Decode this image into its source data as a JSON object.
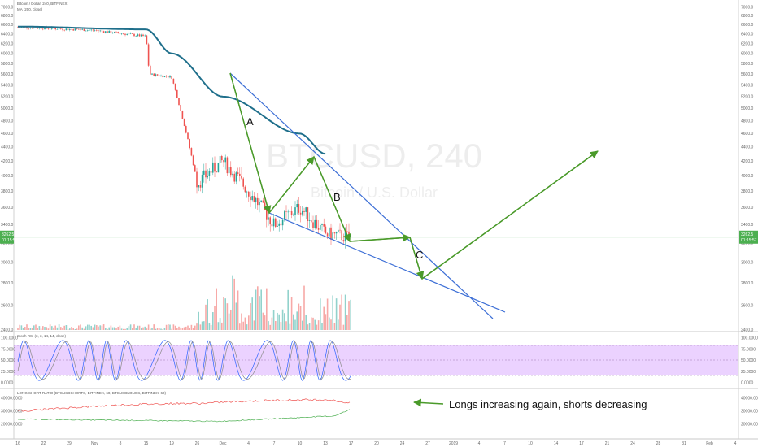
{
  "header": {
    "symbol_line": "Bitcoin / Dollar, 240, BITFINEX",
    "ma_line": "MA (200, close)"
  },
  "watermark": {
    "ticker": "BTCUSD, 240",
    "description": "Bitcoin / U.S. Dollar"
  },
  "price_axis": {
    "ticks": [
      "7000.0",
      "6800.0",
      "6600.0",
      "6400.0",
      "6200.0",
      "6000.0",
      "5800.0",
      "5600.0",
      "5400.0",
      "5200.0",
      "5000.0",
      "4800.0",
      "4600.0",
      "4400.0",
      "4200.0",
      "4000.0",
      "3800.0",
      "3600.0",
      "3400.0",
      "3200.0",
      "3000.0",
      "2800.0",
      "2600.0",
      "2400.0"
    ],
    "current_price": "3262.5",
    "countdown": "01:15:57"
  },
  "wave_labels": {
    "a": "A",
    "b": "B",
    "c": "C"
  },
  "indicators": {
    "stoch_rsi": {
      "label": "Stoch RSI (3, 3, 14, 14, close)",
      "ticks": [
        "100.0000",
        "75.0000",
        "50.0000",
        "25.0000",
        "0.0000"
      ]
    },
    "long_short": {
      "label": "LONG SHORT RATIO (BTCUSDSHORTS, BITFINEX, 60, BTCUSDLONGS, BITFINEX, 60)",
      "ticks": [
        "40000.0000",
        "30000.0000",
        "20000.0000"
      ]
    }
  },
  "annotation": {
    "text": "Longs increasing again, shorts decreasing"
  },
  "time_axis": {
    "ticks": [
      "16",
      "22",
      "29",
      "Nov",
      "8",
      "15",
      "19",
      "26",
      "Dec",
      "4",
      "7",
      "10",
      "13",
      "17",
      "20",
      "24",
      "27",
      "2019",
      "4",
      "7",
      "10",
      "14",
      "17",
      "21",
      "24",
      "28",
      "31",
      "Feb",
      "4"
    ]
  },
  "colors": {
    "up": "#26a69a",
    "down": "#ef5350",
    "ma": "#1f6f8b",
    "trendline": "#3d6fd6",
    "elliott": "#4a9a2a",
    "stoch_band": "#c77dff",
    "price_line": "#4caf50"
  },
  "chart_data": {
    "type": "candlestick",
    "title": "Bitcoin / Dollar, 240, BITFINEX",
    "y_scale": "log",
    "ylim": [
      2450,
      7050
    ],
    "x_timeline": [
      "16",
      "22",
      "29",
      "Nov",
      "8",
      "15",
      "19",
      "26",
      "Dec",
      "4",
      "7",
      "10",
      "13",
      "17",
      "20",
      "24",
      "27",
      "2019",
      "4",
      "7",
      "10",
      "14",
      "17",
      "21",
      "24",
      "28",
      "31",
      "Feb",
      "4"
    ],
    "price_path_anchors": [
      {
        "t": "16",
        "price": 6550
      },
      {
        "t": "Nov",
        "price": 6480
      },
      {
        "t": "15",
        "price": 6350
      },
      {
        "t": "15",
        "price": 5600
      },
      {
        "t": "19",
        "price": 5550
      },
      {
        "t": "26",
        "price": 3900
      },
      {
        "t": "Dec",
        "price": 4200
      },
      {
        "t": "7",
        "price": 3400
      },
      {
        "t": "10",
        "price": 3600
      },
      {
        "t": "13",
        "price": 3300
      },
      {
        "t": "17",
        "price": 3262.5
      }
    ],
    "ma200_anchors": [
      {
        "t": "16",
        "price": 6560
      },
      {
        "t": "15",
        "price": 6500
      },
      {
        "t": "19",
        "price": 6000
      },
      {
        "t": "Dec",
        "price": 5200
      },
      {
        "t": "10",
        "price": 4600
      },
      {
        "t": "13",
        "price": 4300
      }
    ],
    "current_price": 3262.5,
    "annotations": [
      "A",
      "B",
      "C"
    ],
    "indicator_text": "Longs increasing again, shorts decreasing"
  }
}
